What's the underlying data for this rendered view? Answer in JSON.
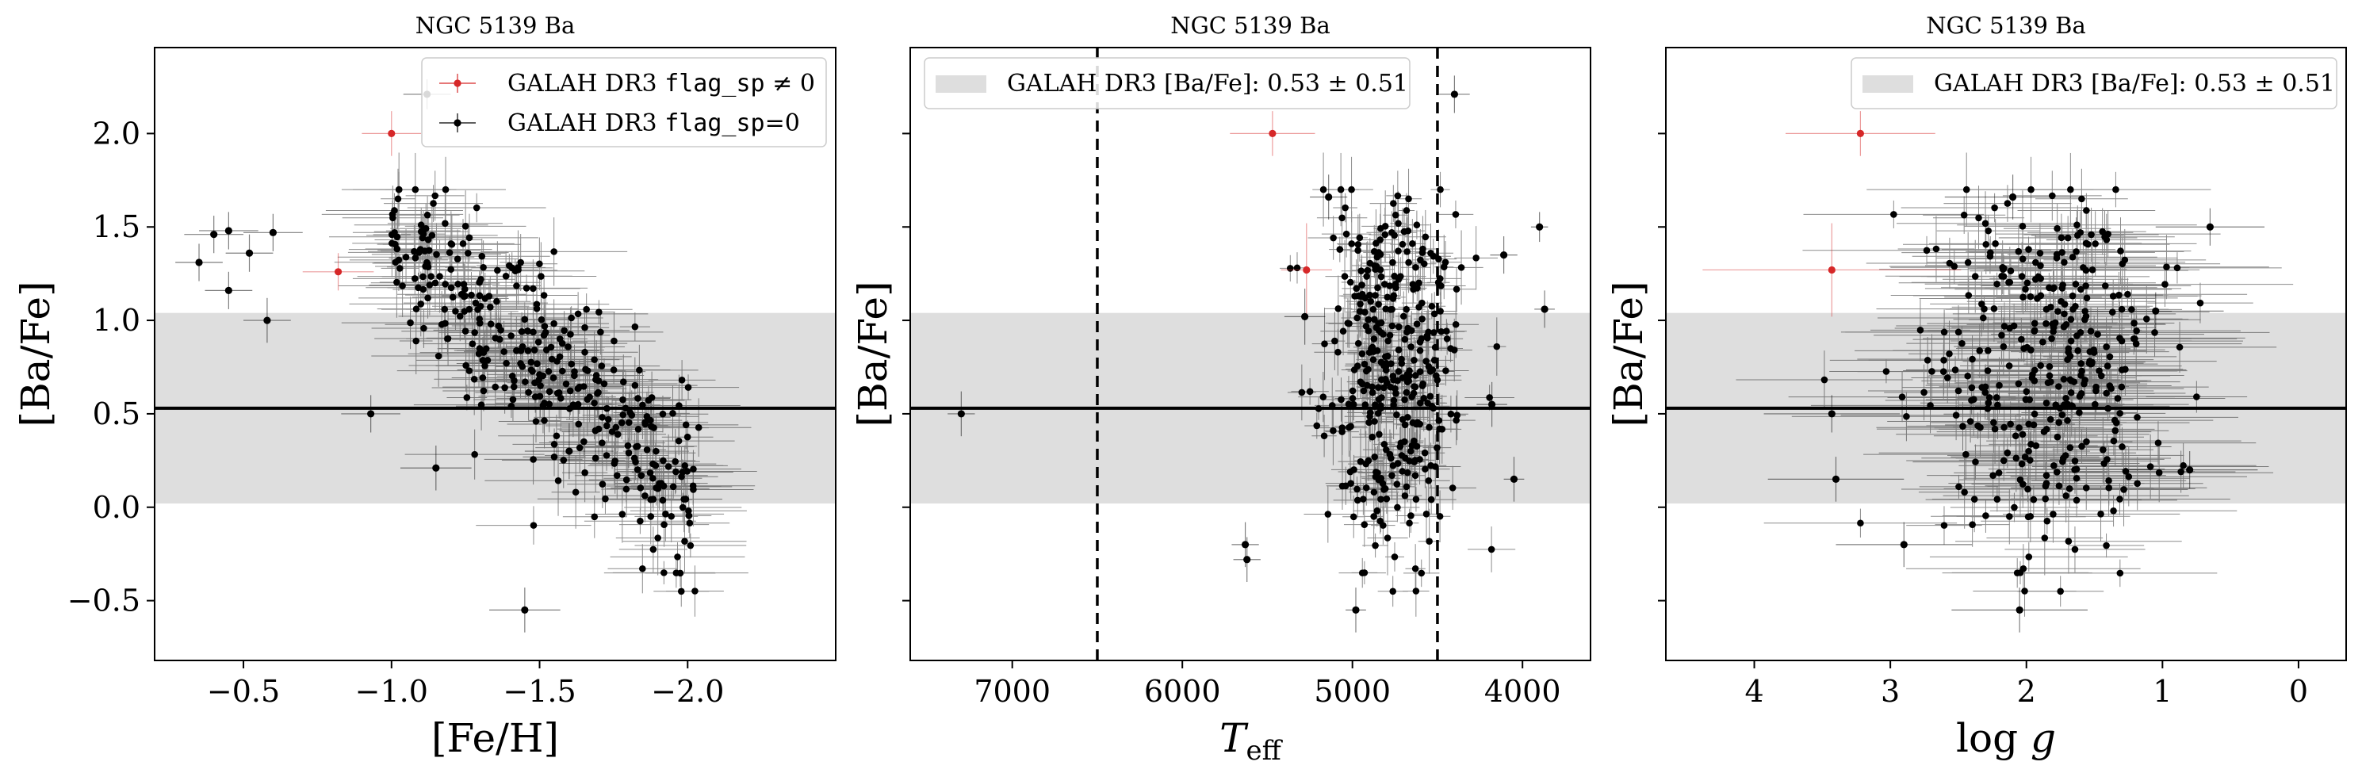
{
  "chart_data": [
    {
      "type": "scatter",
      "title": "NGC 5139 Ba",
      "xlabel": "[Fe/H]",
      "ylabel": "[Ba/Fe]",
      "xlim": [
        -0.2,
        -2.5
      ],
      "ylim": [
        -0.82,
        2.46
      ],
      "xticks": [
        -0.5,
        -1.0,
        -1.5,
        -2.0
      ],
      "xticklabels": [
        "−0.5",
        "−1.0",
        "−1.5",
        "−2.0"
      ],
      "yticks": [
        -0.5,
        0.0,
        0.5,
        1.0,
        1.5,
        2.0
      ],
      "yticklabels": [
        "−0.5",
        "0.0",
        "0.5",
        "1.0",
        "1.5",
        "2.0"
      ],
      "band": {
        "label": "GALAH DR3 [Ba/Fe]: 0.53 ± 0.51",
        "center": 0.53,
        "halfwidth": 0.51,
        "color": "#dedede"
      },
      "hline": 0.53,
      "vlines": [],
      "legend": {
        "placement": "top-right",
        "entries": [
          {
            "prefix": "GALAH DR3 ",
            "code": "flag_sp",
            "suffix": " ≠ 0",
            "color": "#d62728"
          },
          {
            "prefix": "GALAH DR3 ",
            "code": "flag_sp",
            "suffix": "=0",
            "color": "#000000"
          }
        ]
      },
      "series": [
        {
          "name": "GALAH DR3 flag_sp ≠ 0",
          "color": "#d62728",
          "points": [
            [
              -0.82,
              1.26,
              0.12,
              0.1
            ],
            [
              -1.0,
              2.0,
              0.1,
              0.12
            ]
          ]
        },
        {
          "name": "GALAH DR3 flag_sp=0",
          "color": "#000000",
          "points": [
            [
              -0.6,
              1.47,
              0.1,
              0.1
            ],
            [
              -0.52,
              1.36,
              0.08,
              0.1
            ],
            [
              -0.45,
              1.48,
              0.1,
              0.1
            ],
            [
              -0.4,
              1.46,
              0.1,
              0.1
            ],
            [
              -0.58,
              1.0,
              0.08,
              0.12
            ],
            [
              -0.45,
              1.16,
              0.08,
              0.1
            ],
            [
              -0.35,
              1.31,
              0.08,
              0.1
            ],
            [
              -1.12,
              2.21,
              0.08,
              0.08
            ],
            [
              -1.15,
              0.21,
              0.12,
              0.12
            ],
            [
              -0.93,
              0.5,
              0.1,
              0.1
            ],
            [
              -1.6,
              0.3,
              0.15,
              0.15
            ],
            [
              -1.45,
              -0.55,
              0.12,
              0.12
            ]
          ]
        }
      ]
    },
    {
      "type": "scatter",
      "title": "NGC 5139 Ba",
      "xlabel": "T_eff",
      "ylabel": "[Ba/Fe]",
      "xlim": [
        7600,
        3600
      ],
      "ylim": [
        -0.82,
        2.46
      ],
      "xticks": [
        7000,
        6000,
        5000,
        4000
      ],
      "xticklabels": [
        "7000",
        "6000",
        "5000",
        "4000"
      ],
      "yticks": [
        -0.5,
        0.0,
        0.5,
        1.0,
        1.5,
        2.0
      ],
      "yticklabels": [],
      "band": {
        "label": "GALAH DR3 [Ba/Fe]: 0.53 ± 0.51",
        "center": 0.53,
        "halfwidth": 0.51,
        "color": "#dedede"
      },
      "hline": 0.53,
      "vlines": [
        6500,
        4500
      ],
      "legend": {
        "placement": "top-left",
        "entries": [
          {
            "text": "GALAH DR3 [Ba/Fe]: 0.53 ± 0.51",
            "patch": "#dedede"
          }
        ]
      },
      "series": [
        {
          "name": "GALAH DR3 flag_sp ≠ 0",
          "color": "#d62728",
          "points": [
            [
              5470,
              2.0,
              250,
              0.12
            ],
            [
              5270,
              1.27,
              150,
              0.25
            ]
          ]
        },
        {
          "name": "GALAH DR3 flag_sp=0",
          "color": "#000000",
          "points": [
            [
              7300,
              0.5,
              80,
              0.12
            ],
            [
              4400,
              2.21,
              90,
              0.1
            ],
            [
              5140,
              1.66,
              110,
              0.12
            ],
            [
              4110,
              1.35,
              80,
              0.1
            ],
            [
              3900,
              1.5,
              50,
              0.08
            ],
            [
              3870,
              1.06,
              60,
              0.1
            ],
            [
              5280,
              1.02,
              120,
              0.15
            ],
            [
              5630,
              -0.2,
              80,
              0.12
            ],
            [
              5620,
              -0.28,
              80,
              0.12
            ],
            [
              4980,
              -0.55,
              60,
              0.12
            ],
            [
              4050,
              0.15,
              60,
              0.12
            ],
            [
              4180,
              0.55,
              90,
              0.12
            ]
          ]
        }
      ]
    },
    {
      "type": "scatter",
      "title": "NGC 5139 Ba",
      "xlabel": "log g",
      "ylabel": "[Ba/Fe]",
      "xlim": [
        4.65,
        -0.35
      ],
      "ylim": [
        -0.82,
        2.46
      ],
      "xticks": [
        4,
        3,
        2,
        1,
        0
      ],
      "xticklabels": [
        "4",
        "3",
        "2",
        "1",
        "0"
      ],
      "yticks": [
        -0.5,
        0.0,
        0.5,
        1.0,
        1.5,
        2.0
      ],
      "yticklabels": [],
      "band": {
        "label": "GALAH DR3 [Ba/Fe]: 0.53 ± 0.51",
        "center": 0.53,
        "halfwidth": 0.51,
        "color": "#dedede"
      },
      "hline": 0.53,
      "vlines": [],
      "legend": {
        "placement": "top-right",
        "entries": [
          {
            "text": "GALAH DR3 [Ba/Fe]: 0.53 ± 0.51",
            "patch": "#dedede"
          }
        ]
      },
      "series": [
        {
          "name": "GALAH DR3 flag_sp ≠ 0",
          "color": "#d62728",
          "points": [
            [
              3.22,
              2.0,
              0.55,
              0.12
            ],
            [
              3.43,
              1.27,
              0.95,
              0.25
            ]
          ]
        },
        {
          "name": "GALAH DR3 flag_sp=0",
          "color": "#000000",
          "points": [
            [
              3.43,
              0.5,
              0.5,
              0.1
            ],
            [
              1.05,
              1.05,
              0.5,
              0.1
            ],
            [
              0.65,
              1.5,
              0.4,
              0.1
            ],
            [
              2.1,
              1.66,
              0.5,
              0.12
            ],
            [
              2.05,
              -0.55,
              0.5,
              0.12
            ],
            [
              3.4,
              0.15,
              0.5,
              0.12
            ],
            [
              2.9,
              -0.2,
              0.5,
              0.12
            ],
            [
              0.8,
              0.2,
              0.5,
              0.1
            ]
          ]
        }
      ]
    }
  ]
}
